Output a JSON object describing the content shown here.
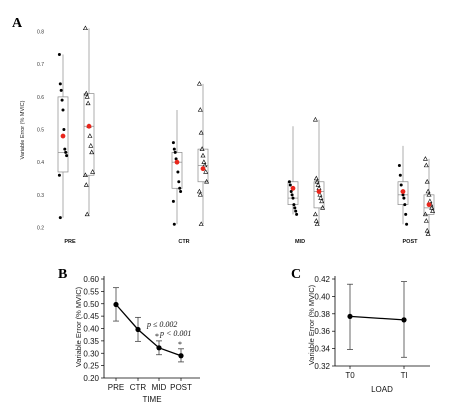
{
  "chart_data": [
    {
      "panel": "A",
      "type": "box",
      "ylabel": "Variable Error (% MVIC)",
      "ylim": [
        0.18,
        0.86
      ],
      "yticks": [
        "0.2",
        "0.3",
        "0.4",
        "0.5",
        "0.6",
        "0.7",
        "0.8"
      ],
      "categories": [
        "PRE",
        "CTR",
        "MID",
        "POST"
      ],
      "series": [
        {
          "marker": "dot",
          "boxes": [
            {
              "q1": 0.37,
              "median": 0.43,
              "q3": 0.6,
              "min": 0.23,
              "max": 0.73,
              "mean": 0.48,
              "points": [
                0.73,
                0.64,
                0.62,
                0.59,
                0.56,
                0.5,
                0.44,
                0.43,
                0.42,
                0.36,
                0.23
              ]
            },
            {
              "q1": 0.32,
              "median": 0.4,
              "q3": 0.43,
              "min": 0.21,
              "max": 0.56,
              "mean": 0.4,
              "points": [
                0.46,
                0.44,
                0.43,
                0.41,
                0.4,
                0.37,
                0.34,
                0.32,
                0.31,
                0.28,
                0.21
              ]
            },
            {
              "q1": 0.27,
              "median": 0.29,
              "q3": 0.34,
              "min": 0.24,
              "max": 0.51,
              "mean": 0.32,
              "points": [
                0.34,
                0.33,
                0.31,
                0.3,
                0.29,
                0.27,
                0.26,
                0.25,
                0.24
              ]
            },
            {
              "q1": 0.27,
              "median": 0.3,
              "q3": 0.34,
              "min": 0.21,
              "max": 0.45,
              "mean": 0.31,
              "points": [
                0.39,
                0.36,
                0.33,
                0.31,
                0.3,
                0.29,
                0.27,
                0.24,
                0.21
              ]
            }
          ]
        },
        {
          "marker": "triangle",
          "boxes": [
            {
              "q1": 0.36,
              "median": 0.51,
              "q3": 0.61,
              "min": 0.24,
              "max": 0.81,
              "mean": 0.51,
              "points": [
                0.81,
                0.61,
                0.6,
                0.58,
                0.51,
                0.48,
                0.45,
                0.43,
                0.37,
                0.36,
                0.33,
                0.24
              ]
            },
            {
              "q1": 0.34,
              "median": 0.39,
              "q3": 0.44,
              "min": 0.21,
              "max": 0.64,
              "mean": 0.38,
              "points": [
                0.64,
                0.56,
                0.49,
                0.44,
                0.42,
                0.4,
                0.39,
                0.37,
                0.34,
                0.31,
                0.3,
                0.21
              ]
            },
            {
              "q1": 0.26,
              "median": 0.31,
              "q3": 0.34,
              "min": 0.21,
              "max": 0.53,
              "mean": 0.31,
              "points": [
                0.53,
                0.35,
                0.34,
                0.33,
                0.32,
                0.3,
                0.29,
                0.28,
                0.26,
                0.24,
                0.22,
                0.21
              ]
            },
            {
              "q1": 0.24,
              "median": 0.26,
              "q3": 0.3,
              "min": 0.18,
              "max": 0.41,
              "mean": 0.27,
              "points": [
                0.41,
                0.39,
                0.34,
                0.31,
                0.3,
                0.28,
                0.27,
                0.26,
                0.25,
                0.24,
                0.22,
                0.19,
                0.18
              ]
            }
          ]
        }
      ]
    },
    {
      "panel": "B",
      "type": "line",
      "xlabel": "TIME",
      "ylabel": "Variable Error (% MVIC)",
      "categories": [
        "PRE",
        "CTR",
        "MID",
        "POST"
      ],
      "values": [
        0.497,
        0.396,
        0.322,
        0.29
      ],
      "error": [
        [
          0.43,
          0.565
        ],
        [
          0.348,
          0.445
        ],
        [
          0.294,
          0.35
        ],
        [
          0.265,
          0.318
        ]
      ],
      "ylim": [
        0.2,
        0.6
      ],
      "yticks": [
        "0.20",
        "0.25",
        "0.30",
        "0.35",
        "0.40",
        "0.45",
        "0.50",
        "0.55",
        "0.60"
      ],
      "annotations": [
        {
          "text": "p ≤ 0.002",
          "at": "MID"
        },
        {
          "text": "*",
          "at": "MID"
        },
        {
          "text": "p < 0.001",
          "at": "POST"
        },
        {
          "text": "*",
          "at": "POST"
        }
      ]
    },
    {
      "panel": "C",
      "type": "line",
      "xlabel": "LOAD",
      "ylabel": "Variable Error (% MVIC)",
      "categories": [
        "T0",
        "Tl"
      ],
      "values": [
        0.377,
        0.373
      ],
      "error": [
        [
          0.339,
          0.414
        ],
        [
          0.33,
          0.417
        ]
      ],
      "ylim": [
        0.32,
        0.42
      ],
      "yticks": [
        "0.32",
        "0.34",
        "0.36",
        "0.38",
        "0.40",
        "0.42"
      ]
    }
  ],
  "colors": {
    "mean_marker": "#e8261c",
    "box": "#8a8a8a",
    "line": "#000000"
  }
}
